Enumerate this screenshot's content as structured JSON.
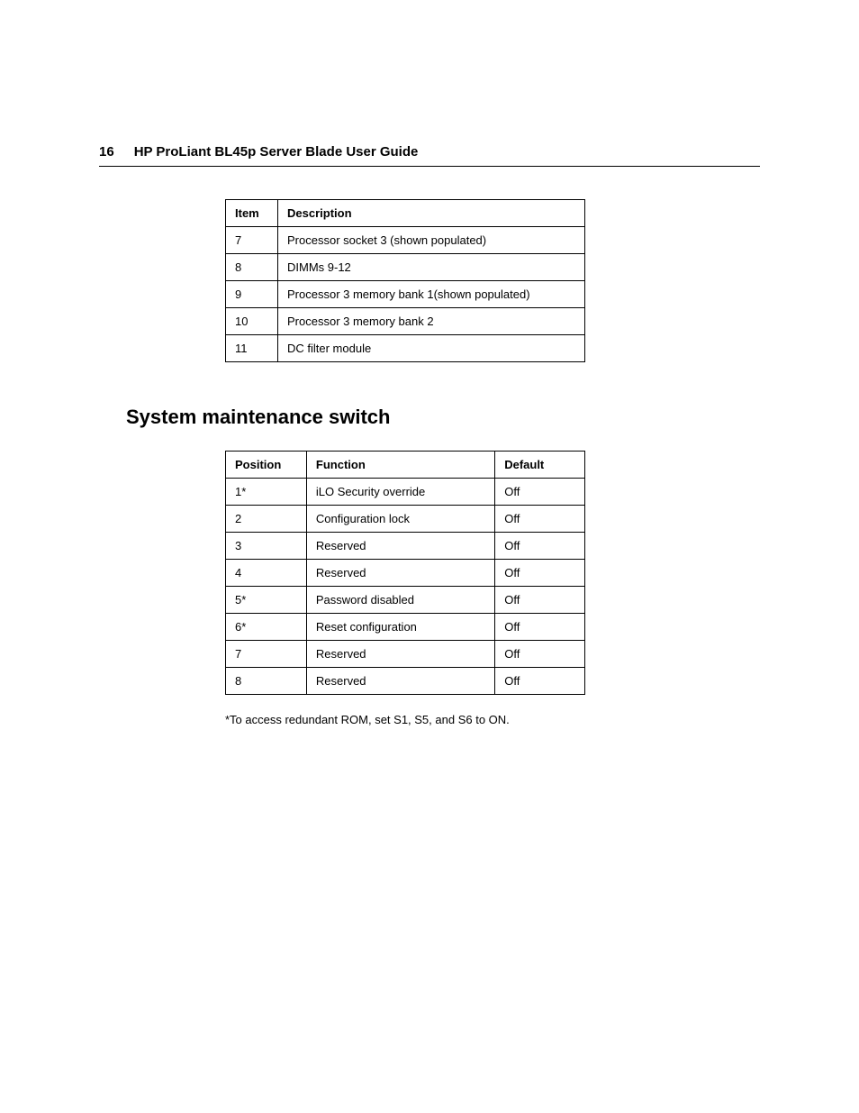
{
  "page_number": "16",
  "doc_title": "HP ProLiant BL45p Server Blade User Guide",
  "table1": {
    "columns": [
      "Item",
      "Description"
    ],
    "rows": [
      [
        "7",
        "Processor socket 3 (shown populated)"
      ],
      [
        "8",
        "DIMMs 9-12"
      ],
      [
        "9",
        "Processor 3 memory bank 1(shown populated)"
      ],
      [
        "10",
        "Processor 3 memory bank 2"
      ],
      [
        "11",
        "DC filter module"
      ]
    ]
  },
  "section_heading": "System maintenance switch",
  "table2": {
    "columns": [
      "Position",
      "Function",
      "Default"
    ],
    "rows": [
      [
        "1*",
        "iLO Security override",
        "Off"
      ],
      [
        "2",
        "Configuration lock",
        "Off"
      ],
      [
        "3",
        "Reserved",
        "Off"
      ],
      [
        "4",
        "Reserved",
        "Off"
      ],
      [
        "5*",
        "Password disabled",
        "Off"
      ],
      [
        "6*",
        "Reset configuration",
        "Off"
      ],
      [
        "7",
        "Reserved",
        "Off"
      ],
      [
        "8",
        "Reserved",
        "Off"
      ]
    ]
  },
  "footnote": "*To access redundant ROM, set S1, S5, and S6 to ON.",
  "style": {
    "body_bg": "#ffffff",
    "text_color": "#000000",
    "border_color": "#000000",
    "header_fontsize": 15,
    "section_fontsize": 22,
    "table_fontsize": 13
  }
}
